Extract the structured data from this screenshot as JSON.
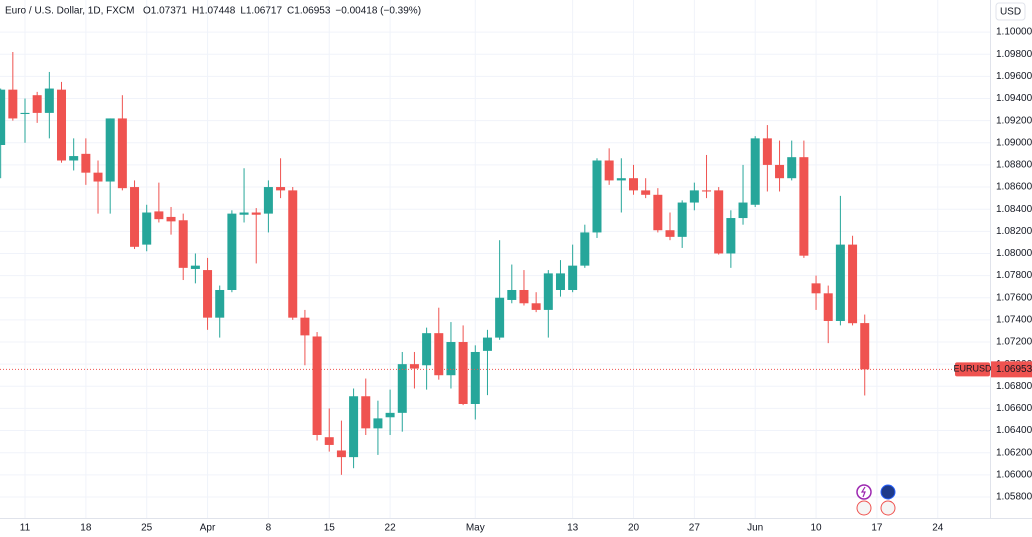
{
  "chart_data": {
    "type": "candlestick",
    "title": "Euro / U.S. Dollar, 1D, FXCM",
    "legend_values": [
      "O1.07371",
      "H1.07448",
      "L1.06717",
      "C1.06953",
      "−0.00418 (−0.39%)"
    ],
    "currency": "USD",
    "symbol": "EURUSD",
    "last_price": 1.06953,
    "up_color": "#26a69a",
    "down_color": "#ef5350",
    "grid": true,
    "categories": [
      null,
      null,
      "11",
      null,
      null,
      null,
      null,
      "18",
      null,
      null,
      null,
      null,
      "25",
      null,
      null,
      null,
      null,
      "Apr",
      null,
      null,
      null,
      null,
      "8",
      null,
      null,
      null,
      null,
      "15",
      null,
      null,
      null,
      null,
      "22",
      null,
      null,
      null,
      null,
      null,
      null,
      "May",
      null,
      null,
      null,
      null,
      null,
      null,
      null,
      "13",
      null,
      null,
      null,
      null,
      "20",
      null,
      null,
      null,
      null,
      "27",
      null,
      null,
      null,
      null,
      "Jun",
      null,
      null,
      null,
      null,
      "10",
      null,
      null,
      null,
      null,
      "17",
      null,
      null,
      null,
      null,
      "24"
    ],
    "open": [
      1.0898,
      1.0948,
      1.0926,
      1.0943,
      1.0927,
      1.0948,
      1.0884,
      1.089,
      1.0873,
      1.0865,
      1.0922,
      1.086,
      1.0808,
      1.0838,
      1.0833,
      1.083,
      1.0786,
      1.0785,
      1.0742,
      1.0767,
      1.0835,
      1.0837,
      1.0836,
      1.086,
      1.0857,
      1.0742,
      1.0725,
      1.0634,
      1.0622,
      1.0616,
      1.0671,
      1.0642,
      1.0652,
      1.0656,
      1.07,
      1.0699,
      1.0728,
      1.069,
      1.072,
      1.0664,
      1.0712,
      1.0724,
      1.0758,
      1.0767,
      1.0755,
      1.0749,
      1.0767,
      1.0767,
      1.0789,
      1.0819,
      1.0884,
      1.0866,
      1.0868,
      1.0857,
      1.0853,
      1.0821,
      1.0815,
      1.0846,
      1.0857,
      1.0857,
      1.08,
      1.0832,
      1.0844,
      1.0904,
      1.088,
      1.0868,
      1.0887,
      1.0773,
      1.0764,
      1.0739,
      1.0808,
      1.07371,
      null,
      null,
      null,
      null,
      null,
      null
    ],
    "high": [
      1.0949,
      1.0982,
      1.094,
      1.0946,
      1.0964,
      1.0955,
      1.0904,
      1.0904,
      1.0884,
      1.0922,
      1.0943,
      1.0866,
      1.0844,
      1.0864,
      1.0842,
      1.0836,
      1.08,
      1.0796,
      1.0771,
      1.0839,
      1.0877,
      1.0841,
      1.0866,
      1.0886,
      1.086,
      1.0749,
      1.0729,
      1.066,
      1.0649,
      1.0678,
      1.0687,
      1.0667,
      1.0677,
      1.0711,
      1.0711,
      1.0733,
      1.0751,
      1.0738,
      1.0735,
      1.0717,
      1.0731,
      1.0812,
      1.079,
      1.0785,
      1.0765,
      1.0785,
      1.0794,
      1.0808,
      1.0826,
      1.0886,
      1.0895,
      1.0886,
      1.088,
      1.0868,
      1.0859,
      1.0837,
      1.0848,
      1.0864,
      1.0889,
      1.086,
      1.0839,
      1.088,
      1.0906,
      1.0916,
      1.0902,
      1.0902,
      1.0902,
      1.078,
      1.0771,
      1.0852,
      1.0816,
      1.07448,
      null,
      null,
      null,
      null,
      null,
      null
    ],
    "low": [
      1.0868,
      1.092,
      1.09,
      1.0918,
      1.0904,
      1.0882,
      1.0875,
      1.0862,
      1.0836,
      1.0836,
      1.0857,
      1.0804,
      1.0802,
      1.0828,
      1.0817,
      1.0776,
      1.0773,
      1.0731,
      1.0724,
      1.0765,
      1.0828,
      1.0791,
      1.0819,
      1.085,
      1.074,
      1.0699,
      1.0631,
      1.0621,
      1.06,
      1.0606,
      1.0636,
      1.0618,
      1.0636,
      1.0639,
      1.0678,
      1.0677,
      1.0686,
      1.0678,
      1.0663,
      1.065,
      1.0672,
      1.0722,
      1.0755,
      1.0753,
      1.0747,
      1.0724,
      1.0761,
      1.0765,
      1.0787,
      1.0814,
      1.0862,
      1.0837,
      1.0853,
      1.085,
      1.0819,
      1.0812,
      1.0805,
      1.0839,
      1.085,
      1.0799,
      1.0787,
      1.0826,
      1.0842,
      1.0856,
      1.0856,
      1.0866,
      1.0796,
      1.0749,
      1.0719,
      1.0735,
      1.0735,
      1.06717,
      null,
      null,
      null,
      null,
      null,
      null
    ],
    "close": [
      1.0948,
      1.0922,
      1.0927,
      1.0927,
      1.0949,
      1.0884,
      1.0888,
      1.0873,
      1.0865,
      1.0922,
      1.0859,
      1.0806,
      1.0837,
      1.0831,
      1.0829,
      1.0787,
      1.0789,
      1.0742,
      1.0767,
      1.0836,
      1.0837,
      1.0835,
      1.086,
      1.0857,
      1.0742,
      1.0726,
      1.0636,
      1.0627,
      1.0616,
      1.0671,
      1.0642,
      1.0651,
      1.0656,
      1.07,
      1.0696,
      1.0728,
      1.069,
      1.072,
      1.0664,
      1.0711,
      1.0724,
      1.076,
      1.0767,
      1.0755,
      1.0749,
      1.0782,
      1.0782,
      1.0789,
      1.0819,
      1.0884,
      1.0866,
      1.0868,
      1.0857,
      1.0853,
      1.0821,
      1.0815,
      1.0846,
      1.0857,
      1.0856,
      1.08,
      1.0832,
      1.0846,
      1.0904,
      1.088,
      1.0868,
      1.0887,
      1.0798,
      1.0764,
      1.0739,
      1.0808,
      1.0737,
      1.06953,
      null,
      null,
      null,
      null,
      null,
      null
    ],
    "ylim": [
      1.0561,
      1.1029
    ],
    "yticks": [
      {
        "value": 1.058,
        "label": "1.05800"
      },
      {
        "value": 1.06,
        "label": "1.06000"
      },
      {
        "value": 1.062,
        "label": "1.06200"
      },
      {
        "value": 1.064,
        "label": "1.06400"
      },
      {
        "value": 1.066,
        "label": "1.06600"
      },
      {
        "value": 1.068,
        "label": "1.06800"
      },
      {
        "value": 1.07,
        "label": "1.07000"
      },
      {
        "value": 1.072,
        "label": "1.07200"
      },
      {
        "value": 1.074,
        "label": "1.07400"
      },
      {
        "value": 1.076,
        "label": "1.07600"
      },
      {
        "value": 1.078,
        "label": "1.07800"
      },
      {
        "value": 1.08,
        "label": "1.08000"
      },
      {
        "value": 1.082,
        "label": "1.08200"
      },
      {
        "value": 1.084,
        "label": "1.08400"
      },
      {
        "value": 1.086,
        "label": "1.08600"
      },
      {
        "value": 1.088,
        "label": "1.08800"
      },
      {
        "value": 1.09,
        "label": "1.09000"
      },
      {
        "value": 1.092,
        "label": "1.09200"
      },
      {
        "value": 1.094,
        "label": "1.09400"
      },
      {
        "value": 1.096,
        "label": "1.09600"
      },
      {
        "value": 1.098,
        "label": "1.09800"
      },
      {
        "value": 1.1,
        "label": "1.10000"
      }
    ]
  }
}
